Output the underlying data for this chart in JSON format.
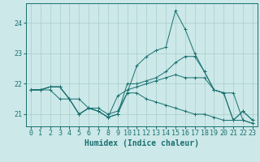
{
  "title": "",
  "xlabel": "Humidex (Indice chaleur)",
  "ylabel": "",
  "bg_color": "#cce8e8",
  "grid_color": "#aacccc",
  "line_color": "#1a7070",
  "x": [
    0,
    1,
    2,
    3,
    4,
    5,
    6,
    7,
    8,
    9,
    10,
    11,
    12,
    13,
    14,
    15,
    16,
    17,
    18,
    19,
    20,
    21,
    22,
    23
  ],
  "lines": [
    [
      21.8,
      21.8,
      21.9,
      21.9,
      21.5,
      21.0,
      21.2,
      21.1,
      20.9,
      21.0,
      21.7,
      22.6,
      22.9,
      23.1,
      23.2,
      24.4,
      23.8,
      23.0,
      22.4,
      21.8,
      21.7,
      20.8,
      21.1,
      20.8
    ],
    [
      21.8,
      21.8,
      21.9,
      21.9,
      21.5,
      21.0,
      21.2,
      21.1,
      20.9,
      21.0,
      22.0,
      22.0,
      22.1,
      22.2,
      22.4,
      22.7,
      22.9,
      22.9,
      22.4,
      21.8,
      21.7,
      20.8,
      21.1,
      20.8
    ],
    [
      21.8,
      21.8,
      21.9,
      21.9,
      21.5,
      21.0,
      21.2,
      21.1,
      20.9,
      21.6,
      21.8,
      21.9,
      22.0,
      22.1,
      22.2,
      22.3,
      22.2,
      22.2,
      22.2,
      21.8,
      21.7,
      21.7,
      20.8,
      20.7
    ],
    [
      21.8,
      21.8,
      21.8,
      21.5,
      21.5,
      21.5,
      21.2,
      21.2,
      21.0,
      21.1,
      21.7,
      21.7,
      21.5,
      21.4,
      21.3,
      21.2,
      21.1,
      21.0,
      21.0,
      20.9,
      20.8,
      20.8,
      20.8,
      20.7
    ]
  ],
  "xlim": [
    -0.5,
    23.5
  ],
  "ylim": [
    20.6,
    24.65
  ],
  "yticks": [
    21,
    22,
    23,
    24
  ],
  "xticks": [
    0,
    1,
    2,
    3,
    4,
    5,
    6,
    7,
    8,
    9,
    10,
    11,
    12,
    13,
    14,
    15,
    16,
    17,
    18,
    19,
    20,
    21,
    22,
    23
  ],
  "tick_fontsize": 6,
  "xlabel_fontsize": 7,
  "marker": "+"
}
